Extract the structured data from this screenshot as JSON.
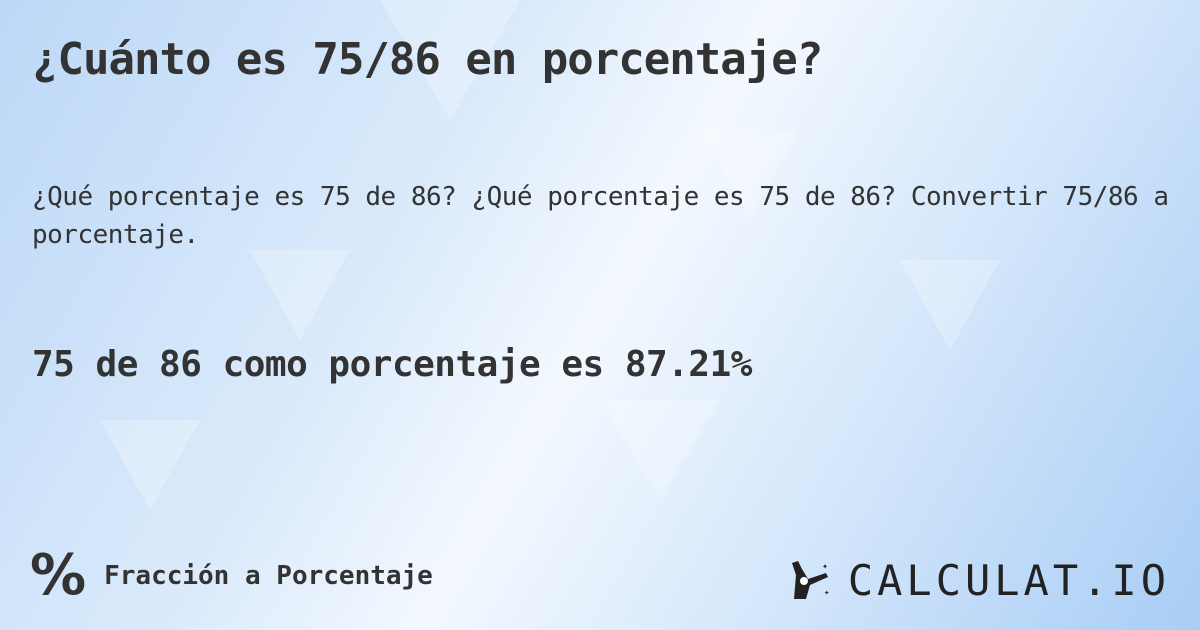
{
  "title": "¿Cuánto es 75/86 en porcentaje?",
  "subtitle": "¿Qué porcentaje es 75 de 86? ¿Qué porcentaje es 75 de 86? Convertir 75/86 a porcentaje.",
  "answer": "75 de 86 como porcentaje es 87.21%",
  "footer": {
    "icon": "percent-icon",
    "icon_glyph": "%",
    "label": "Fracción a Porcentaje"
  },
  "logo": {
    "text": "CALCULAT.IO"
  }
}
